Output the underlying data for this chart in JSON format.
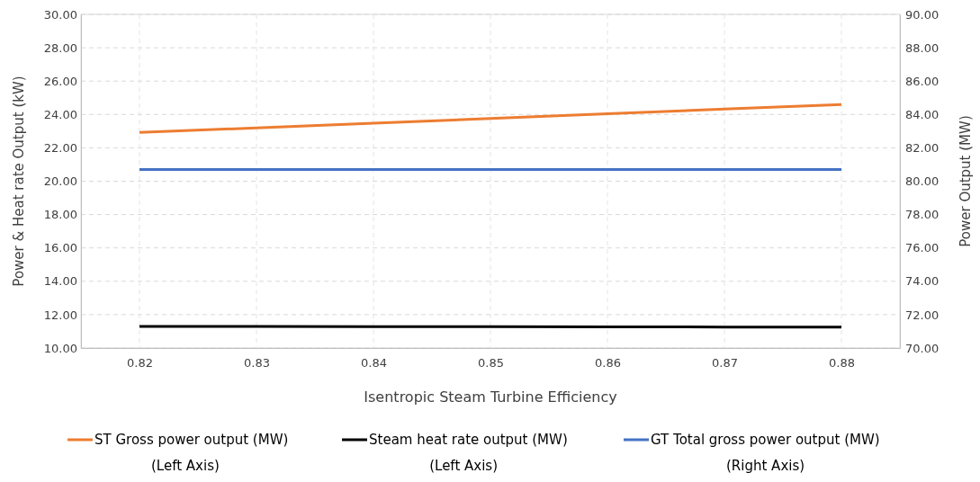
{
  "chart_data": {
    "type": "line",
    "xlabel": "Isentropic Steam Turbine Efficiency",
    "ylabel": "Power & Heat rate Output (kW)",
    "y2label": "Power Output (MW)",
    "x": [
      0.82,
      0.83,
      0.84,
      0.85,
      0.86,
      0.87,
      0.88
    ],
    "xlim": [
      0.815,
      0.885
    ],
    "xticks": [
      {
        "value": 0.82,
        "label": "0.82"
      },
      {
        "value": 0.83,
        "label": "0.83"
      },
      {
        "value": 0.84,
        "label": "0.84"
      },
      {
        "value": 0.85,
        "label": "0.85"
      },
      {
        "value": 0.86,
        "label": "0.86"
      },
      {
        "value": 0.87,
        "label": "0.87"
      },
      {
        "value": 0.88,
        "label": "0.88"
      }
    ],
    "ylim": [
      10,
      30
    ],
    "yticks": [
      {
        "value": 10,
        "label": "10.00"
      },
      {
        "value": 12,
        "label": "12.00"
      },
      {
        "value": 14,
        "label": "14.00"
      },
      {
        "value": 16,
        "label": "16.00"
      },
      {
        "value": 18,
        "label": "18.00"
      },
      {
        "value": 20,
        "label": "20.00"
      },
      {
        "value": 22,
        "label": "22.00"
      },
      {
        "value": 24,
        "label": "24.00"
      },
      {
        "value": 26,
        "label": "26.00"
      },
      {
        "value": 28,
        "label": "28.00"
      },
      {
        "value": 30,
        "label": "30.00"
      }
    ],
    "y2lim": [
      70,
      90
    ],
    "y2ticks": [
      {
        "value": 70,
        "label": "70.00"
      },
      {
        "value": 72,
        "label": "72.00"
      },
      {
        "value": 74,
        "label": "74.00"
      },
      {
        "value": 76,
        "label": "76.00"
      },
      {
        "value": 78,
        "label": "78.00"
      },
      {
        "value": 80,
        "label": "80.00"
      },
      {
        "value": 82,
        "label": "82.00"
      },
      {
        "value": 84,
        "label": "84.00"
      },
      {
        "value": 86,
        "label": "86.00"
      },
      {
        "value": 88,
        "label": "88.00"
      },
      {
        "value": 90,
        "label": "90.00"
      }
    ],
    "grid": true,
    "legend": "bottom",
    "marker": "none",
    "line_style": "solid",
    "series": [
      {
        "name": "ST Gross power output (MW)\n(Left Axis)",
        "color": "#ed7d31",
        "values": [
          22.92,
          23.2,
          23.48,
          23.76,
          24.04,
          24.32,
          24.6
        ]
      },
      {
        "name": "Steam heat rate output (MW)\n(Left Axis)",
        "color": "#000000",
        "values": [
          11.3,
          11.29,
          11.28,
          11.28,
          11.27,
          11.26,
          11.25
        ]
      },
      {
        "name": "GT Total gross power output (MW)\n(Right Axis)",
        "color": "#4472c4",
        "axis": "y2",
        "values": [
          80.7,
          80.7,
          80.7,
          80.7,
          80.7,
          80.7,
          80.7
        ]
      }
    ]
  }
}
